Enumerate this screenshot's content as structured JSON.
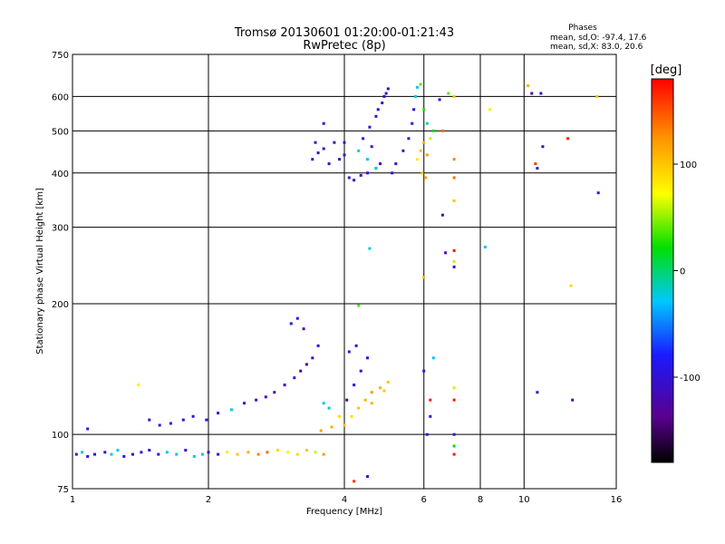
{
  "chart_data": {
    "type": "scatter",
    "title": "Tromsø 20130601 01:20:00-01:21:43",
    "subtitle": "RwPretec (8p)",
    "xlabel": "Frequency [MHz]",
    "ylabel": "Stationary phase Virtual Height [km]",
    "x_scale": "log",
    "y_scale": "log",
    "xlim": [
      1,
      16
    ],
    "ylim": [
      75,
      750
    ],
    "x_ticks": [
      1,
      2,
      4,
      6,
      8,
      10,
      16
    ],
    "x_tick_labels": [
      "1",
      "2",
      "4",
      "6",
      "8",
      "10",
      "16"
    ],
    "y_ticks": [
      75,
      100,
      200,
      300,
      400,
      500,
      600,
      750
    ],
    "y_tick_labels": [
      "75",
      "100",
      "200",
      "300",
      "400",
      "500",
      "600",
      "750"
    ],
    "grid": true,
    "stats": {
      "heading": "Phases",
      "line_o": "mean, sd,O: -97.4, 17.6",
      "line_x": "mean, sd,X:  83.0, 20.6"
    },
    "colorbar": {
      "label": "[deg]",
      "range": [
        -180,
        180
      ],
      "ticks": [
        -100,
        0,
        100
      ],
      "tick_labels": [
        "-100",
        "0",
        "100"
      ],
      "colormap": "rainbow (black-purple-blue-cyan-green-yellow-red)"
    },
    "series": [
      {
        "values": [
          [
            1.02,
            90,
            -95
          ],
          [
            1.05,
            91,
            -30
          ],
          [
            1.08,
            89,
            -100
          ],
          [
            1.12,
            90,
            -95
          ],
          [
            1.18,
            91,
            -90
          ],
          [
            1.22,
            90,
            -20
          ],
          [
            1.26,
            92,
            -30
          ],
          [
            1.3,
            89,
            -95
          ],
          [
            1.36,
            90,
            -100
          ],
          [
            1.42,
            91,
            -95
          ],
          [
            1.48,
            92,
            -90
          ],
          [
            1.55,
            90,
            -100
          ],
          [
            1.62,
            91,
            -30
          ],
          [
            1.7,
            90,
            -20
          ],
          [
            1.78,
            92,
            -95
          ],
          [
            1.86,
            89,
            -20
          ],
          [
            1.94,
            90,
            -30
          ],
          [
            2.0,
            91,
            -95
          ],
          [
            2.1,
            90,
            -95
          ],
          [
            2.2,
            91,
            80
          ],
          [
            2.32,
            90,
            100
          ],
          [
            2.45,
            91,
            110
          ],
          [
            2.58,
            90,
            130
          ],
          [
            2.7,
            91,
            140
          ],
          [
            2.85,
            92,
            90
          ],
          [
            3.0,
            91,
            80
          ],
          [
            3.15,
            90,
            90
          ],
          [
            3.3,
            92,
            100
          ],
          [
            3.45,
            91,
            60
          ],
          [
            3.6,
            90,
            120
          ]
        ]
      },
      {
        "values": [
          [
            1.08,
            103,
            -100
          ],
          [
            1.4,
            130,
            80
          ],
          [
            1.48,
            108,
            -95
          ],
          [
            1.56,
            105,
            -100
          ],
          [
            1.65,
            106,
            -95
          ],
          [
            1.76,
            108,
            -110
          ],
          [
            1.85,
            110,
            -100
          ],
          [
            1.98,
            108,
            -90
          ],
          [
            2.1,
            112,
            -100
          ],
          [
            2.25,
            114,
            -20
          ],
          [
            2.4,
            118,
            -100
          ],
          [
            2.55,
            120,
            -95
          ],
          [
            2.68,
            122,
            -110
          ],
          [
            2.8,
            125,
            -120
          ],
          [
            2.95,
            130,
            -110
          ],
          [
            3.1,
            135,
            -100
          ],
          [
            3.2,
            140,
            -130
          ],
          [
            3.3,
            145,
            -140
          ],
          [
            3.4,
            150,
            -100
          ],
          [
            3.5,
            160,
            -100
          ],
          [
            3.05,
            180,
            -95
          ],
          [
            3.15,
            185,
            -90
          ],
          [
            3.25,
            175,
            -130
          ],
          [
            3.6,
            118,
            -30
          ],
          [
            3.7,
            115,
            -20
          ]
        ]
      },
      {
        "values": [
          [
            3.55,
            102,
            120
          ],
          [
            3.75,
            104,
            110
          ],
          [
            4.0,
            105,
            100
          ],
          [
            4.15,
            110,
            90
          ],
          [
            4.3,
            115,
            100
          ],
          [
            4.45,
            120,
            110
          ],
          [
            4.6,
            125,
            120
          ],
          [
            4.8,
            128,
            110
          ],
          [
            5.0,
            132,
            100
          ],
          [
            4.05,
            120,
            -120
          ],
          [
            4.2,
            130,
            -95
          ],
          [
            4.35,
            140,
            -110
          ],
          [
            4.5,
            150,
            -100
          ],
          [
            4.1,
            155,
            -95
          ],
          [
            4.6,
            118,
            110
          ],
          [
            4.9,
            126,
            100
          ],
          [
            3.9,
            110,
            90
          ]
        ]
      },
      {
        "values": [
          [
            3.4,
            430,
            -100
          ],
          [
            3.5,
            445,
            -110
          ],
          [
            3.6,
            455,
            -100
          ],
          [
            3.45,
            470,
            -95
          ],
          [
            3.7,
            420,
            -100
          ],
          [
            3.9,
            430,
            -110
          ],
          [
            4.0,
            440,
            -100
          ],
          [
            4.1,
            390,
            -100
          ],
          [
            4.2,
            385,
            -110
          ],
          [
            4.35,
            395,
            -95
          ],
          [
            4.5,
            400,
            -100
          ],
          [
            4.7,
            410,
            -100
          ],
          [
            4.8,
            420,
            -110
          ],
          [
            4.6,
            460,
            -100
          ],
          [
            4.4,
            480,
            -95
          ],
          [
            4.55,
            510,
            -100
          ],
          [
            4.7,
            540,
            -110
          ],
          [
            4.85,
            580,
            -100
          ],
          [
            4.95,
            610,
            -110
          ],
          [
            5.0,
            625,
            -120
          ],
          [
            4.9,
            600,
            -100
          ],
          [
            4.75,
            560,
            -100
          ],
          [
            4.3,
            450,
            -20
          ],
          [
            4.5,
            430,
            -30
          ],
          [
            4.7,
            410,
            -20
          ],
          [
            5.1,
            400,
            -100
          ],
          [
            5.2,
            420,
            -95
          ],
          [
            5.4,
            450,
            -100
          ],
          [
            5.55,
            480,
            -110
          ],
          [
            5.65,
            520,
            -100
          ],
          [
            5.7,
            560,
            -95
          ],
          [
            5.75,
            600,
            -20
          ],
          [
            5.8,
            630,
            -30
          ],
          [
            5.9,
            640,
            40
          ],
          [
            6.0,
            560,
            30
          ],
          [
            6.1,
            520,
            -10
          ],
          [
            5.8,
            430,
            80
          ],
          [
            5.9,
            450,
            100
          ],
          [
            6.0,
            470,
            110
          ],
          [
            6.1,
            440,
            120
          ],
          [
            6.2,
            480,
            60
          ],
          [
            6.3,
            500,
            20
          ],
          [
            5.95,
            400,
            100
          ],
          [
            6.05,
            390,
            120
          ],
          [
            3.6,
            520,
            -100
          ],
          [
            3.8,
            470,
            -110
          ],
          [
            4.0,
            470,
            -95
          ]
        ]
      },
      {
        "values": [
          [
            4.2,
            78,
            160
          ],
          [
            4.5,
            80,
            -100
          ],
          [
            4.55,
            268,
            -20
          ],
          [
            4.3,
            198,
            40
          ],
          [
            4.25,
            160,
            -110
          ],
          [
            6.0,
            230,
            100
          ],
          [
            6.0,
            140,
            -100
          ],
          [
            6.1,
            100,
            -100
          ],
          [
            6.2,
            120,
            170
          ],
          [
            6.2,
            110,
            -100
          ],
          [
            6.3,
            150,
            -30
          ],
          [
            6.5,
            590,
            -100
          ],
          [
            6.6,
            500,
            140
          ],
          [
            6.8,
            610,
            40
          ],
          [
            7.0,
            600,
            100
          ],
          [
            7.0,
            430,
            130
          ],
          [
            7.0,
            390,
            140
          ],
          [
            7.0,
            345,
            100
          ],
          [
            7.0,
            265,
            170
          ],
          [
            7.0,
            250,
            60
          ],
          [
            7.0,
            243,
            -110
          ],
          [
            7.0,
            128,
            60
          ],
          [
            7.0,
            120,
            170
          ],
          [
            7.0,
            100,
            -100
          ],
          [
            7.0,
            94,
            20
          ],
          [
            7.0,
            90,
            170
          ],
          [
            6.6,
            320,
            -100
          ],
          [
            6.7,
            262,
            -120
          ],
          [
            8.2,
            270,
            -30
          ],
          [
            8.4,
            560,
            80
          ],
          [
            10.2,
            635,
            110
          ],
          [
            10.4,
            610,
            -140
          ],
          [
            10.6,
            420,
            160
          ],
          [
            10.7,
            410,
            -110
          ],
          [
            10.9,
            610,
            -100
          ],
          [
            11.0,
            460,
            -110
          ],
          [
            10.7,
            125,
            -100
          ],
          [
            12.5,
            480,
            170
          ],
          [
            12.7,
            220,
            90
          ],
          [
            12.8,
            120,
            -120
          ],
          [
            14.5,
            600,
            100
          ],
          [
            14.6,
            360,
            -100
          ]
        ]
      }
    ]
  }
}
